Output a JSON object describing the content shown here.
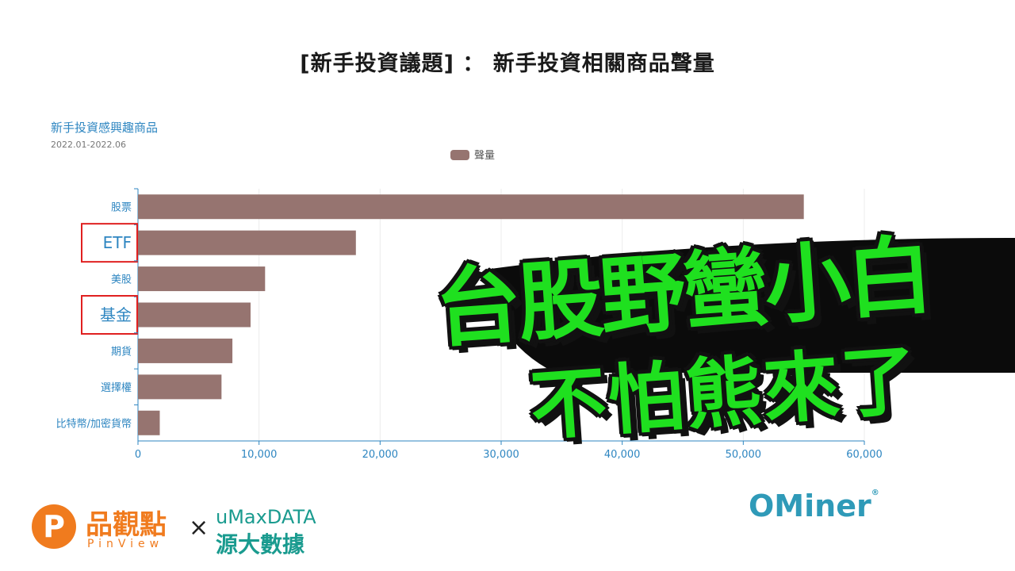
{
  "headline": "[新手投資議題] ： 新手投資相關商品聲量",
  "chart_data": {
    "type": "bar",
    "orientation": "horizontal",
    "title": "新手投資感興趣商品",
    "subtitle": "2022.01-2022.06",
    "categories": [
      "股票",
      "ETF",
      "美股",
      "基金",
      "期貨",
      "選擇權",
      "比特幣/加密貨幣"
    ],
    "highlighted": [
      "ETF",
      "基金"
    ],
    "series": [
      {
        "name": "聲量",
        "color": "#967470",
        "values": [
          55000,
          18000,
          10500,
          9300,
          7800,
          6900,
          1800
        ]
      }
    ],
    "xlim": [
      0,
      60000
    ],
    "xticks": [
      0,
      10000,
      20000,
      30000,
      40000,
      50000,
      60000
    ],
    "xtick_labels": [
      "0",
      "10,000",
      "20,000",
      "30,000",
      "40,000",
      "50,000",
      "60,000"
    ],
    "legend_position": "top-center",
    "grid": true
  },
  "overlay": {
    "line1": "台股野蠻小白",
    "line2": "不怕熊來了"
  },
  "brands": {
    "pinview_icon": "P",
    "pinview_cn": "品觀點",
    "pinview_en": "PinView",
    "times": "×",
    "umax_en": "uMaxDATA",
    "umax_cn": "源大數據",
    "ominer": "OMiner",
    "ominer_reg": "®"
  },
  "colors": {
    "accent_green": "#1fe01f",
    "axis_blue": "#2e86c1",
    "highlight_red": "#e02020"
  }
}
